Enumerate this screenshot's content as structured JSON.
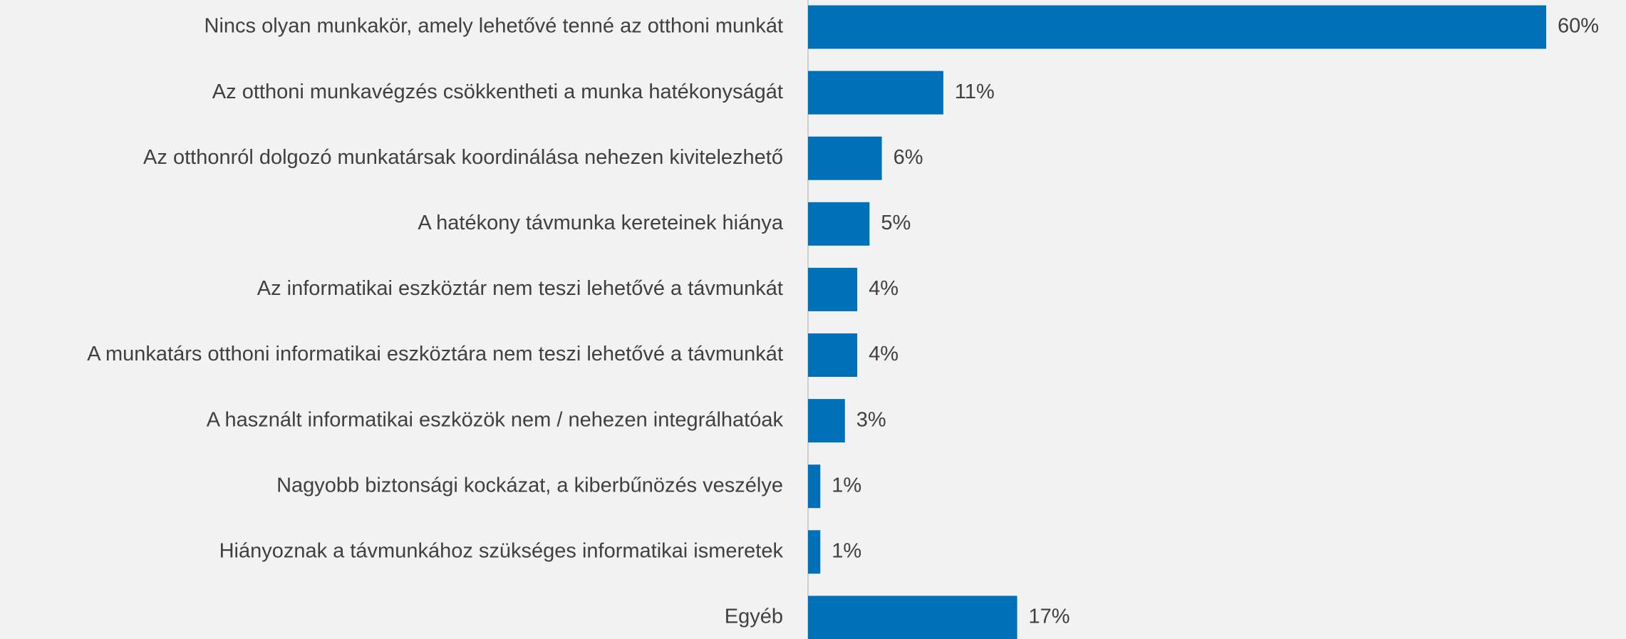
{
  "chart_data": {
    "type": "barh",
    "categories": [
      "Nincs olyan munkakör, amely lehetővé tenné az otthoni munkát",
      "Az otthoni munkavégzés csökkentheti a munka hatékonyságát",
      "Az otthonról dolgozó munkatársak koordinálása nehezen kivitelezhető",
      "A hatékony távmunka kereteinek hiánya",
      "Az informatikai eszköztár nem teszi lehetővé a távmunkát",
      "A munkatárs otthoni informatikai eszköztára nem teszi lehetővé a távmunkát",
      "A használt informatikai eszközök nem / nehezen integrálhatóak",
      "Nagyobb biztonsági kockázat, a kiberbűnözés veszélye",
      "Hiányoznak a távmunkához szükséges informatikai ismeretek",
      "Egyéb"
    ],
    "values": [
      60,
      11,
      6,
      5,
      4,
      4,
      3,
      1,
      1,
      17
    ],
    "value_labels": [
      "60%",
      "11%",
      "6%",
      "5%",
      "4%",
      "4%",
      "3%",
      "1%",
      "1%",
      "17%"
    ],
    "color": "#0070b8"
  }
}
